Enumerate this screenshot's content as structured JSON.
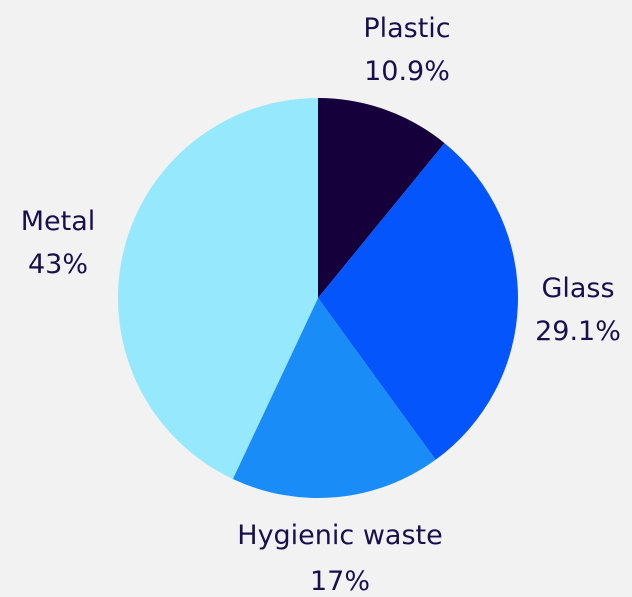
{
  "chart_data": {
    "type": "pie",
    "title": "",
    "slices": [
      {
        "label": "Plastic",
        "value": 10.9,
        "value_label": "10.9%",
        "color": "#16003b"
      },
      {
        "label": "Glass",
        "value": 29.1,
        "value_label": "29.1%",
        "color": "#0455fc"
      },
      {
        "label": "Hygienic waste",
        "value": 17,
        "value_label": "17%",
        "color": "#1a8cf7"
      },
      {
        "label": "Metal",
        "value": 43,
        "value_label": "43%",
        "color": "#96e8fc"
      }
    ],
    "start_angle_deg": 0,
    "direction": "clockwise",
    "label_color": "#1a0f4d",
    "background": "#f2f2f2"
  }
}
